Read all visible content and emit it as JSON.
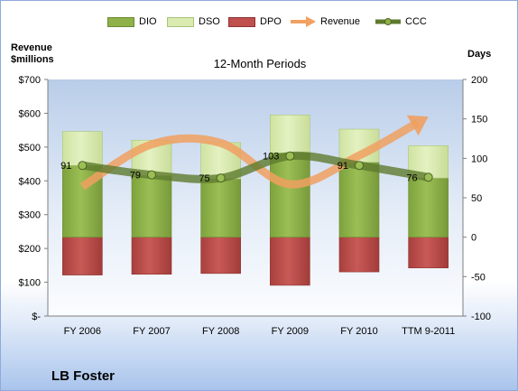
{
  "company": "LB Foster",
  "chart_data": {
    "type": "bar",
    "title": "12-Month Periods",
    "categories": [
      "FY 2006",
      "FY 2007",
      "FY 2008",
      "FY 2009",
      "FY 2010",
      "TTM 9-2011"
    ],
    "left_axis": {
      "label_line1": "Revenue",
      "label_line2": "$millions",
      "range": [
        0,
        700
      ],
      "ticks": [
        "$-",
        "$100",
        "$200",
        "$300",
        "$400",
        "$500",
        "$600",
        "$700"
      ]
    },
    "right_axis": {
      "label": "Days",
      "range": [
        -100,
        200
      ],
      "ticks": [
        "-100",
        "-50",
        "0",
        "50",
        "100",
        "150",
        "200"
      ]
    },
    "series": [
      {
        "name": "DIO",
        "axis": "right",
        "kind": "stacked-bar",
        "values": [
          91,
          78,
          74,
          107,
          95,
          75
        ],
        "color": "#8fb14a"
      },
      {
        "name": "DSO",
        "axis": "right",
        "kind": "stacked-bar",
        "values": [
          43,
          45,
          46,
          48,
          42,
          41
        ],
        "color": "#d9ebb0"
      },
      {
        "name": "DPO",
        "axis": "right",
        "kind": "negative-bar",
        "values": [
          -48,
          -47,
          -46,
          -61,
          -44,
          -39
        ],
        "color": "#c0504d"
      },
      {
        "name": "Revenue",
        "axis": "left",
        "kind": "line",
        "values": [
          383,
          508,
          512,
          390,
          475,
          590
        ],
        "color": "#f0a060"
      },
      {
        "name": "CCC",
        "axis": "right",
        "kind": "line",
        "values": [
          91,
          79,
          75,
          103,
          91,
          76
        ],
        "labels": [
          "91",
          "79",
          "75",
          "103",
          "91",
          "76"
        ],
        "color": "#5e7a2e"
      }
    ],
    "legend_position": "top",
    "grid": false
  }
}
